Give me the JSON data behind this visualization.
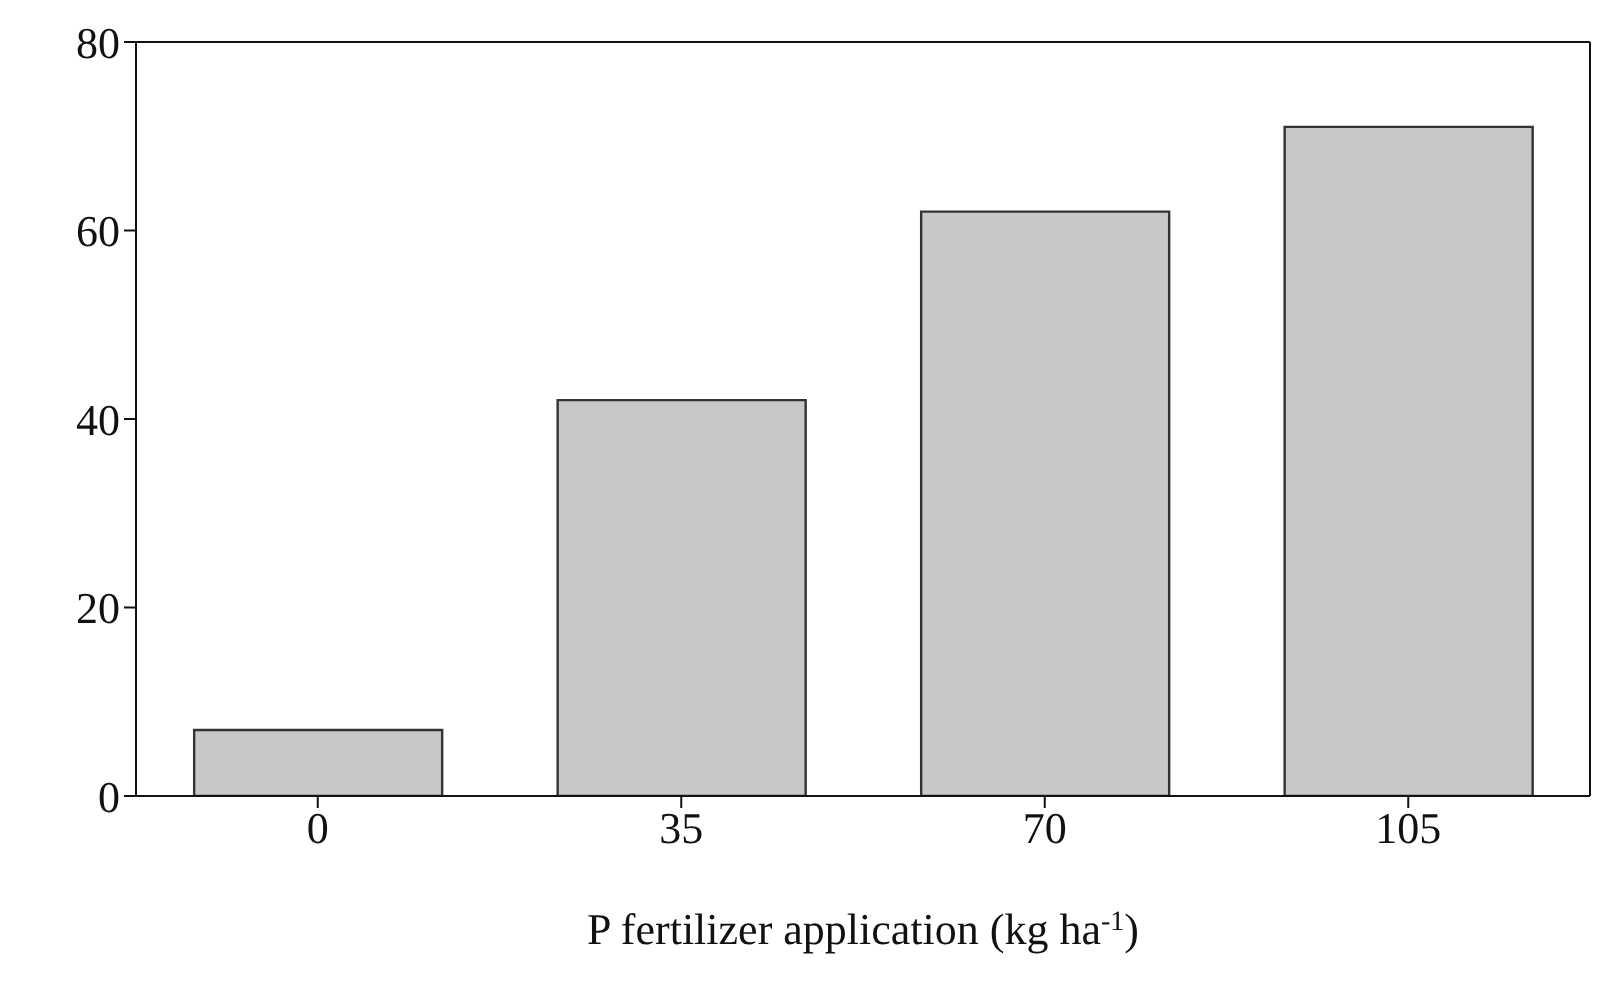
{
  "chart_data": {
    "type": "bar",
    "xlabel": "P fertilizer application (kg ha$^{-1}$)",
    "categories": [
      "0",
      "35",
      "70",
      "105"
    ],
    "values": [
      7,
      42,
      62,
      71
    ],
    "color": "#c8c8c8",
    "ylim": [
      0,
      80
    ],
    "yticks": [
      0,
      20,
      40,
      60,
      80
    ]
  }
}
